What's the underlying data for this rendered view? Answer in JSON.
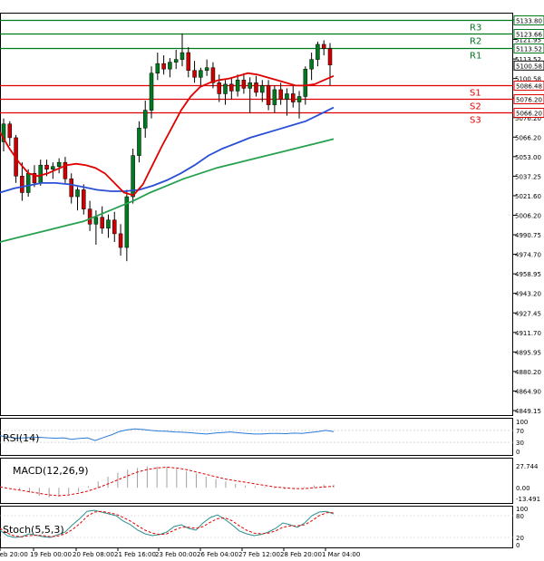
{
  "chart_data": [
    {
      "type": "candlestick",
      "title": "",
      "ylim": [
        4849.15,
        5133.8
      ],
      "y_ticks": [
        "5133.80",
        "5121.95",
        "5113.52",
        "5100.58",
        "5086.48",
        "5076.20",
        "5066.20",
        "5053.00",
        "5037.25",
        "5021.60",
        "5006.20",
        "4990.75",
        "4974.70",
        "4958.95",
        "4943.20",
        "4927.45",
        "4911.70",
        "4895.95",
        "4880.20",
        "4864.90",
        "4849.15"
      ],
      "x_labels": [
        "Feb 20:00",
        "19 Feb 00:00",
        "20 Feb 08:00",
        "21 Feb 16:00",
        "23 Feb 00:00",
        "26 Feb 04:00",
        "27 Feb 12:00",
        "28 Feb 20:00",
        "1 Mar 04:00"
      ],
      "current_price": "5100.58",
      "levels": [
        {
          "name": "R3",
          "value": 5133.8,
          "label": "5133.80",
          "color": "#007a1e"
        },
        {
          "name": "R2",
          "value": 5123.66,
          "label": "5123.66",
          "color": "#007a1e"
        },
        {
          "name": "R1",
          "value": 5113.52,
          "label": "5113.52",
          "color": "#007a1e"
        },
        {
          "name": "S1",
          "value": 5086.48,
          "label": "5086.48",
          "color": "#e00000"
        },
        {
          "name": "S2",
          "value": 5076.2,
          "label": "5076.20",
          "color": "#e00000"
        },
        {
          "name": "S3",
          "value": 5066.2,
          "label": "5066.20",
          "color": "#e00000"
        }
      ],
      "candles": [
        [
          5045,
          5062,
          5038,
          5058
        ],
        [
          5058,
          5060,
          5042,
          5048
        ],
        [
          5048,
          5050,
          5015,
          5020
        ],
        [
          5020,
          5030,
          5002,
          5008
        ],
        [
          5008,
          5025,
          5005,
          5022
        ],
        [
          5022,
          5028,
          5012,
          5015
        ],
        [
          5015,
          5032,
          5013,
          5028
        ],
        [
          5028,
          5032,
          5020,
          5025
        ],
        [
          5025,
          5030,
          5018,
          5027
        ],
        [
          5027,
          5033,
          5022,
          5030
        ],
        [
          5030,
          5034,
          5015,
          5018
        ],
        [
          5018,
          5022,
          5000,
          5005
        ],
        [
          5005,
          5012,
          4995,
          5010
        ],
        [
          5010,
          5014,
          4992,
          4996
        ],
        [
          4996,
          5002,
          4980,
          4985
        ],
        [
          4985,
          4995,
          4970,
          4990
        ],
        [
          4990,
          4998,
          4978,
          4982
        ],
        [
          4982,
          4992,
          4975,
          4988
        ],
        [
          4988,
          4994,
          4972,
          4978
        ],
        [
          4978,
          4985,
          4962,
          4968
        ],
        [
          4968,
          5010,
          4958,
          5005
        ],
        [
          5005,
          5040,
          5000,
          5035
        ],
        [
          5035,
          5060,
          5030,
          5055
        ],
        [
          5055,
          5075,
          5048,
          5068
        ],
        [
          5068,
          5100,
          5062,
          5095
        ],
        [
          5095,
          5110,
          5090,
          5102
        ],
        [
          5102,
          5108,
          5094,
          5098
        ],
        [
          5098,
          5106,
          5092,
          5103
        ],
        [
          5103,
          5112,
          5098,
          5105
        ],
        [
          5105,
          5124,
          5100,
          5110
        ],
        [
          5110,
          5114,
          5092,
          5097
        ],
        [
          5097,
          5104,
          5088,
          5092
        ],
        [
          5092,
          5099,
          5086,
          5097
        ],
        [
          5097,
          5105,
          5093,
          5099
        ],
        [
          5099,
          5103,
          5084,
          5088
        ],
        [
          5088,
          5094,
          5074,
          5080
        ],
        [
          5080,
          5090,
          5072,
          5087
        ],
        [
          5087,
          5092,
          5076,
          5082
        ],
        [
          5082,
          5094,
          5078,
          5090
        ],
        [
          5090,
          5095,
          5080,
          5084
        ],
        [
          5084,
          5092,
          5066,
          5088
        ],
        [
          5088,
          5093,
          5078,
          5081
        ],
        [
          5081,
          5090,
          5074,
          5086
        ],
        [
          5086,
          5090,
          5068,
          5072
        ],
        [
          5072,
          5086,
          5066,
          5083
        ],
        [
          5083,
          5088,
          5072,
          5076
        ],
        [
          5076,
          5084,
          5064,
          5080
        ],
        [
          5080,
          5087,
          5070,
          5074
        ],
        [
          5074,
          5082,
          5062,
          5078
        ],
        [
          5078,
          5100,
          5072,
          5098
        ],
        [
          5098,
          5110,
          5090,
          5105
        ],
        [
          5105,
          5118,
          5100,
          5116
        ],
        [
          5116,
          5119,
          5108,
          5113
        ],
        [
          5113,
          5117,
          5086,
          5101
        ]
      ],
      "ma_red": [
        5052,
        5040,
        5030,
        5022,
        5020,
        5022,
        5025,
        5028,
        5029,
        5028,
        5026,
        5022,
        5015,
        5008,
        5006,
        5014,
        5028,
        5042,
        5055,
        5068,
        5078,
        5085,
        5088,
        5090,
        5091,
        5093,
        5095,
        5094,
        5092,
        5090,
        5088,
        5086,
        5086,
        5087,
        5090,
        5093
      ],
      "ma_blue": [
        5008,
        5011,
        5013,
        5015,
        5015,
        5014,
        5012,
        5010,
        5009,
        5009,
        5010,
        5013,
        5017,
        5022,
        5028,
        5035,
        5040,
        5044,
        5048,
        5051,
        5054,
        5057,
        5060,
        5065,
        5070
      ],
      "ma_green": [
        4972,
        4975,
        4978,
        4981,
        4984,
        4987,
        4992,
        4997,
        5002,
        5008,
        5013,
        5018,
        5022,
        5026,
        5029,
        5032,
        5035,
        5038,
        5041,
        5044,
        5047
      ]
    },
    {
      "type": "line",
      "name": "RSI(14)",
      "ylim": [
        0,
        100
      ],
      "y_ticks": [
        "100",
        "70",
        "30",
        "0"
      ],
      "values": [
        52,
        48,
        44,
        45,
        46,
        47,
        45,
        44,
        45,
        40,
        43,
        45,
        36,
        46,
        55,
        66,
        72,
        75,
        73,
        70,
        68,
        67,
        65,
        64,
        62,
        60,
        58,
        61,
        63,
        65,
        62,
        60,
        58,
        58,
        60,
        60,
        59,
        61,
        60,
        63,
        66,
        70,
        66
      ]
    },
    {
      "type": "bar",
      "name": "MACD(12,26,9)",
      "y_ticks": [
        "27.744",
        "0.00",
        "-13.491"
      ],
      "histogram": [
        2,
        0,
        -3,
        -6,
        -10,
        -12,
        -11,
        -8,
        -5,
        2,
        8,
        14,
        19,
        23,
        25,
        27,
        27,
        26,
        24,
        21,
        18,
        14,
        11,
        8,
        5,
        3,
        2,
        1,
        -1,
        -2,
        -1,
        1,
        3,
        4,
        4
      ],
      "signal": [
        1,
        -1,
        -3,
        -5,
        -7,
        -9,
        -10,
        -9,
        -7,
        -4,
        0,
        5,
        10,
        15,
        20,
        23,
        25,
        26,
        25,
        23,
        20,
        17,
        14,
        11,
        9,
        7,
        5,
        3,
        1,
        0,
        -1,
        -1,
        0,
        1,
        2
      ]
    },
    {
      "type": "line",
      "name": "Stoch(5,5,3)",
      "ylim": [
        0,
        100
      ],
      "y_ticks": [
        "100",
        "80",
        "20",
        "0"
      ],
      "k": [
        40,
        25,
        20,
        22,
        30,
        26,
        22,
        20,
        28,
        35,
        55,
        72,
        92,
        95,
        90,
        85,
        80,
        65,
        55,
        40,
        30,
        25,
        28,
        35,
        50,
        55,
        45,
        40,
        60,
        75,
        82,
        70,
        55,
        38,
        30,
        25,
        28,
        35,
        45,
        60,
        55,
        48,
        60,
        80,
        90,
        92,
        85
      ],
      "d": [
        45,
        32,
        24,
        22,
        25,
        26,
        25,
        22,
        24,
        30,
        42,
        58,
        78,
        90,
        92,
        88,
        84,
        75,
        65,
        52,
        40,
        32,
        28,
        30,
        40,
        48,
        48,
        45,
        50,
        62,
        72,
        74,
        66,
        52,
        40,
        32,
        30,
        32,
        38,
        48,
        52,
        52,
        55,
        66,
        80,
        88,
        88
      ]
    }
  ]
}
